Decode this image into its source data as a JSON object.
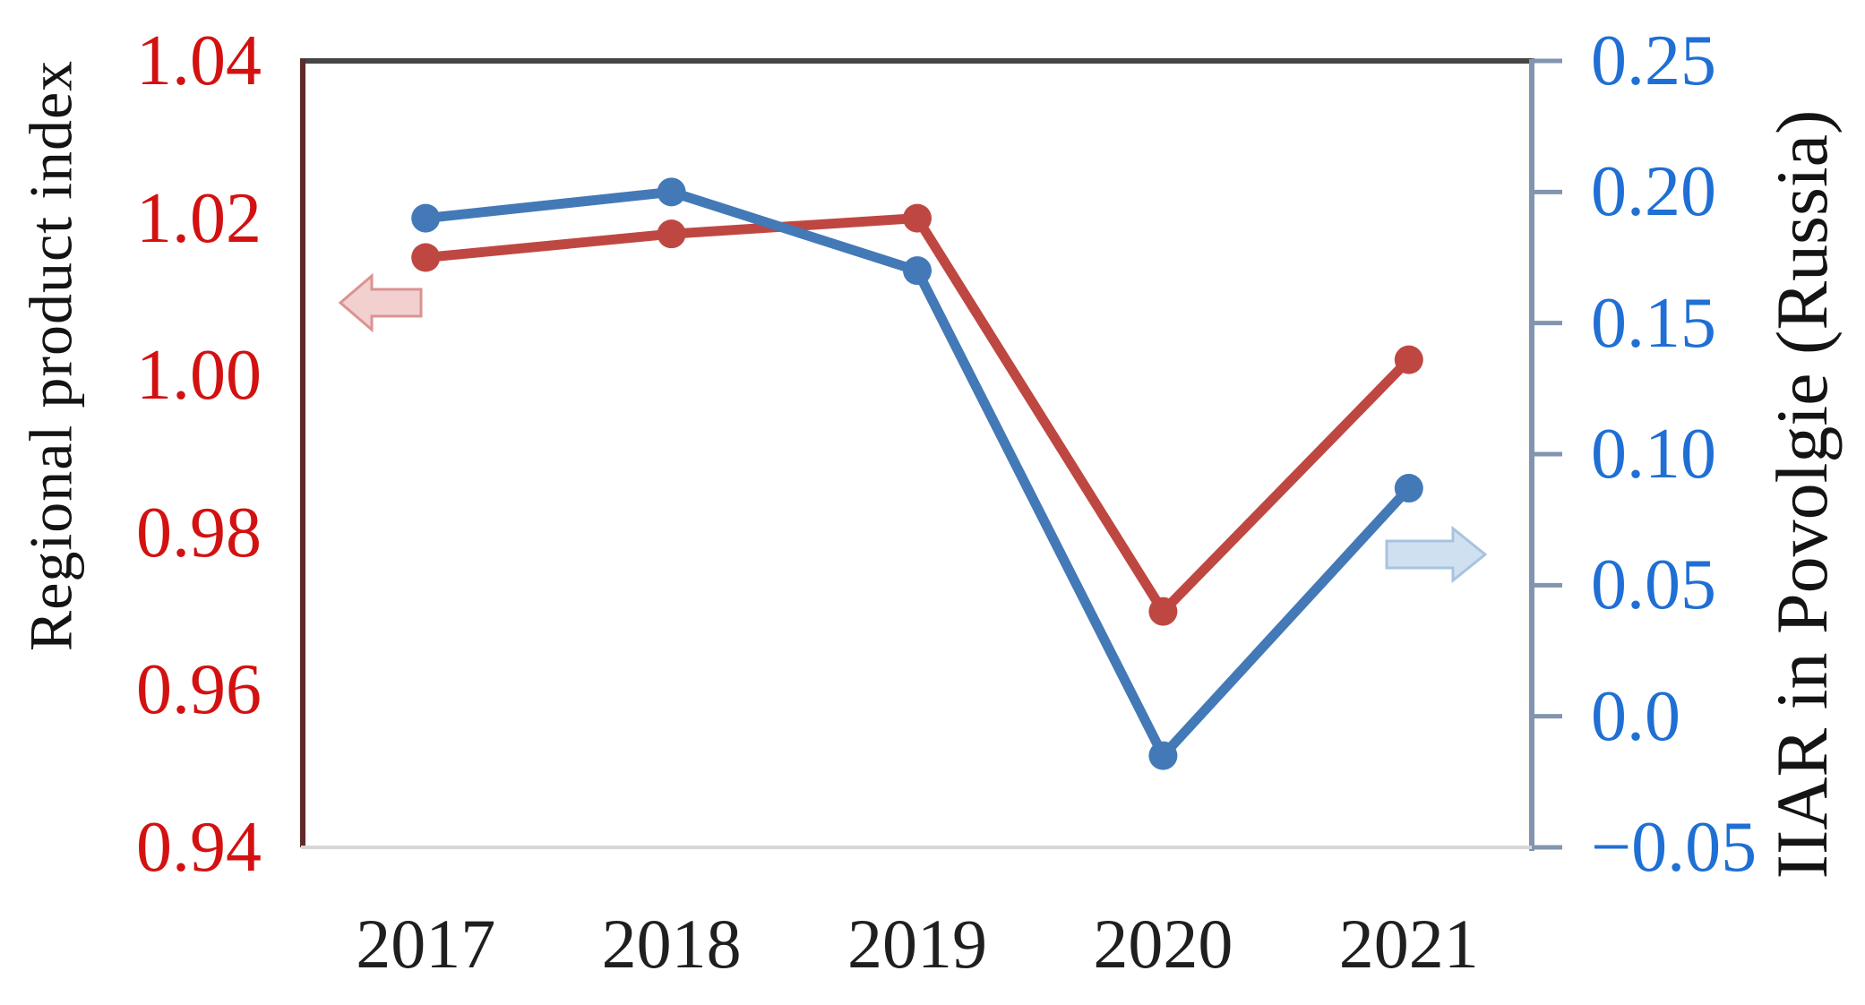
{
  "figure": {
    "left_axis": {
      "title": "Regional product index",
      "tick_labels": [
        "1.04",
        "1.02",
        "1.00",
        "0.98",
        "0.96",
        "0.94"
      ],
      "tick_color": "#d31111"
    },
    "right_axis": {
      "title": "IIAR in Povolgie (Russia)",
      "tick_labels": [
        "0.25",
        "0.20",
        "0.15",
        "0.10",
        "0.05",
        "0.0",
        "−0.05"
      ],
      "tick_color": "#1f6fd4"
    },
    "x_axis": {
      "tick_labels": [
        "2017",
        "2018",
        "2019",
        "2020",
        "2021"
      ]
    },
    "icons": {
      "left_arrow": "pink left block arrow pointing to red left axis",
      "right_arrow": "blue right block arrow pointing to blue right axis"
    }
  },
  "chart_data": {
    "type": "line",
    "categories": [
      "2017",
      "2018",
      "2019",
      "2020",
      "2021"
    ],
    "series": [
      {
        "name": "Regional product index",
        "axis": "left",
        "color": "#bf4742",
        "marker": "circle",
        "values": [
          1.015,
          1.018,
          1.02,
          0.97,
          1.002
        ]
      },
      {
        "name": "IIAR in Povolgie (Russia)",
        "axis": "right",
        "color": "#4379b6",
        "marker": "circle",
        "values": [
          0.19,
          0.2,
          0.17,
          -0.015,
          0.087
        ]
      }
    ],
    "left_ylim": [
      0.94,
      1.04
    ],
    "right_ylim": [
      -0.05,
      0.25
    ],
    "xlabel": "",
    "ylabel_left": "Regional product index",
    "ylabel_right": "IIAR in Povolgie (Russia)",
    "grid": false,
    "legend": "none"
  },
  "colors": {
    "top_spine": "#454545",
    "left_spine": "#5f2a28",
    "right_spine": "#8295ae",
    "bottom_spine": "#d7d7d7",
    "arrow_pink_fill": "#f2d0d0",
    "arrow_blue_fill": "#cfe0f1",
    "red_line": "#bf4742",
    "blue_line": "#4379b6"
  }
}
